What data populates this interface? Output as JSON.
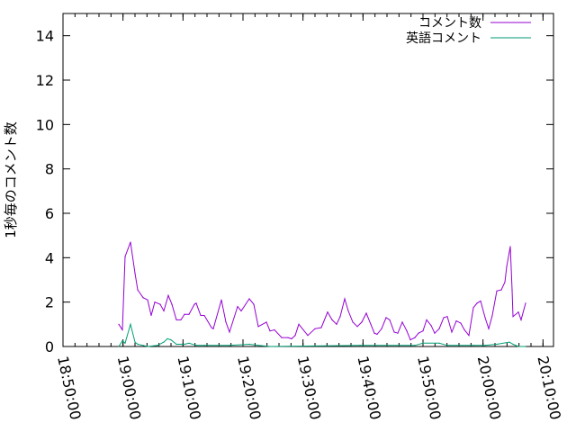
{
  "chart_data": {
    "type": "line",
    "title": "",
    "xlabel": "",
    "ylabel": "1秒毎のコメント数",
    "xlim": [
      "18:50:00",
      "20:11:45"
    ],
    "ylim": [
      0,
      15
    ],
    "x_ticks": [
      "18:50:00",
      "19:00:00",
      "19:10:00",
      "19:20:00",
      "19:30:00",
      "19:40:00",
      "19:50:00",
      "20:00:00",
      "20:10:00"
    ],
    "y_ticks": [
      0,
      2,
      4,
      6,
      8,
      10,
      12,
      14
    ],
    "grid": false,
    "legend_position": "top-right",
    "series": [
      {
        "name": "コメント数",
        "color": "#9400d3",
        "x": [
          "18:59:18",
          "18:59:54",
          "19:00:21",
          "19:01:15",
          "19:02:00",
          "19:02:27",
          "19:03:21",
          "19:04:06",
          "19:04:42",
          "19:05:18",
          "19:06:12",
          "19:06:48",
          "19:07:33",
          "19:08:09",
          "19:08:54",
          "19:09:39",
          "19:10:15",
          "19:11:00",
          "19:11:54",
          "19:12:12",
          "19:12:57",
          "19:13:33",
          "19:14:45",
          "19:15:03",
          "19:16:24",
          "19:17:09",
          "19:17:45",
          "19:19:06",
          "19:19:42",
          "19:21:03",
          "19:21:48",
          "19:22:33",
          "19:23:54",
          "19:24:30",
          "19:25:15",
          "19:26:27",
          "19:27:30",
          "19:28:06",
          "19:28:42",
          "19:29:18",
          "19:30:48",
          "19:32:00",
          "19:33:03",
          "19:34:06",
          "19:34:51",
          "19:35:36",
          "19:36:12",
          "19:36:57",
          "19:37:33",
          "19:38:18",
          "19:39:03",
          "19:39:48",
          "19:40:33",
          "19:41:18",
          "19:41:54",
          "19:42:21",
          "19:43:06",
          "19:43:51",
          "19:44:27",
          "19:45:12",
          "19:45:48",
          "19:46:33",
          "19:47:18",
          "19:47:54",
          "19:48:39",
          "19:49:15",
          "19:50:00",
          "19:50:36",
          "19:51:21",
          "19:51:57",
          "19:52:42",
          "19:53:27",
          "19:54:03",
          "19:54:48",
          "19:55:33",
          "19:56:18",
          "19:56:54",
          "19:57:39",
          "19:58:24",
          "19:59:00",
          "19:59:36",
          "20:00:21",
          "20:00:57",
          "20:01:33",
          "20:02:18",
          "20:03:03",
          "20:03:39",
          "20:03:57",
          "20:04:33",
          "20:04:51",
          "20:05:00",
          "20:05:54",
          "20:06:21",
          "20:07:06"
        ],
        "y": [
          1.0,
          0.75,
          4.05,
          4.7,
          3.3,
          2.55,
          2.2,
          2.1,
          1.4,
          2.0,
          1.9,
          1.6,
          2.3,
          1.9,
          1.2,
          1.2,
          1.45,
          1.45,
          1.9,
          1.95,
          1.4,
          1.4,
          0.85,
          0.8,
          2.1,
          1.1,
          0.65,
          1.8,
          1.6,
          2.15,
          1.9,
          0.9,
          1.1,
          0.7,
          0.75,
          0.4,
          0.4,
          0.35,
          0.5,
          1.0,
          0.5,
          0.8,
          0.85,
          1.55,
          1.2,
          1.0,
          1.35,
          2.15,
          1.6,
          1.1,
          0.9,
          1.1,
          1.5,
          1.0,
          0.6,
          0.55,
          0.8,
          1.3,
          1.2,
          0.65,
          0.6,
          1.1,
          0.7,
          0.3,
          0.4,
          0.6,
          0.7,
          1.2,
          0.95,
          0.6,
          0.8,
          1.3,
          1.35,
          0.65,
          1.15,
          1.05,
          0.75,
          0.5,
          1.75,
          1.95,
          2.05,
          1.3,
          0.8,
          1.4,
          2.5,
          2.55,
          2.9,
          3.6,
          4.5,
          2.55,
          1.35,
          1.55,
          1.2,
          1.95
        ]
      },
      {
        "name": "英語コメント",
        "color": "#009e73",
        "x": [
          "18:59:18",
          "18:59:54",
          "19:00:21",
          "19:01:15",
          "19:02:00",
          "19:02:27",
          "19:03:21",
          "19:04:06",
          "19:05:45",
          "19:06:48",
          "19:07:24",
          "19:08:00",
          "19:08:54",
          "19:10:15",
          "19:11:00",
          "19:12:12",
          "19:13:33",
          "19:17:45",
          "19:21:03",
          "19:22:33",
          "19:24:30",
          "19:39:30",
          "19:48:39",
          "19:50:00",
          "19:52:42",
          "19:54:03",
          "19:58:24",
          "20:00:21",
          "20:02:18",
          "20:04:24",
          "20:05:00",
          "20:05:54",
          "20:07:06"
        ],
        "y": [
          0,
          0.25,
          0.15,
          1.0,
          0.2,
          0.1,
          0.05,
          0,
          0.05,
          0.2,
          0.35,
          0.3,
          0.1,
          0.1,
          0.15,
          0.05,
          0.05,
          0.05,
          0.1,
          0.05,
          0,
          0.05,
          0.05,
          0.15,
          0.15,
          0.05,
          0.05,
          0.05,
          0.1,
          0.2,
          0.1,
          0,
          0
        ]
      }
    ]
  }
}
